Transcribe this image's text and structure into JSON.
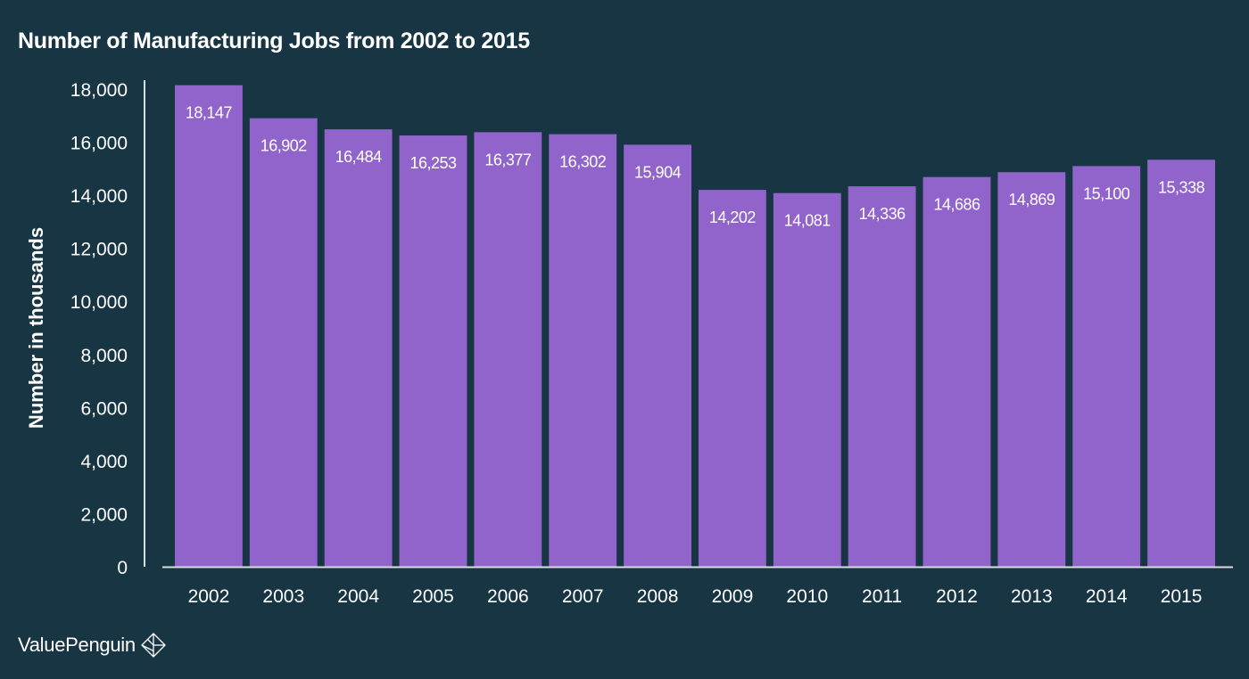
{
  "chart_data": {
    "type": "bar",
    "title": "Number of Manufacturing Jobs from 2002 to 2015",
    "xlabel": "",
    "ylabel": "Number in thousands",
    "ylim": [
      0,
      18000
    ],
    "yticks": [
      "0",
      "2,000",
      "4,000",
      "6,000",
      "8,000",
      "10,000",
      "12,000",
      "14,000",
      "16,000",
      "18,000"
    ],
    "ytick_values": [
      0,
      2000,
      4000,
      6000,
      8000,
      10000,
      12000,
      14000,
      16000,
      18000
    ],
    "categories": [
      "2002",
      "2003",
      "2004",
      "2005",
      "2006",
      "2007",
      "2008",
      "2009",
      "2010",
      "2011",
      "2012",
      "2013",
      "2014",
      "2015"
    ],
    "values": [
      18147,
      16902,
      16484,
      16253,
      16377,
      16302,
      15904,
      14202,
      14081,
      14336,
      14686,
      14869,
      15100,
      15338
    ],
    "data_labels": [
      "18,147",
      "16,902",
      "16,484",
      "16,253",
      "16,377",
      "16,302",
      "15,904",
      "14,202",
      "14,081",
      "14,336",
      "14,686",
      "14,869",
      "15,100",
      "15,338"
    ],
    "grid": false,
    "legend": "none"
  },
  "colors": {
    "background": "#173543",
    "bar": "#9064cb",
    "text": "#ffffff",
    "axis": "#d9dde0"
  },
  "branding": {
    "name": "ValuePenguin",
    "logo_icon": "valuepenguin-logo-icon"
  }
}
